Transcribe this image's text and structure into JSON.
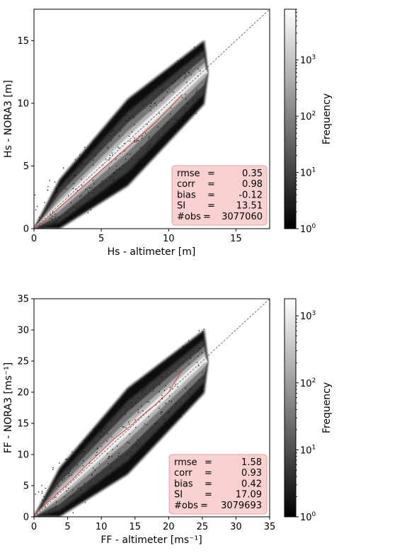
{
  "chart_data": [
    {
      "type": "heatmap",
      "subtype": "2d-density-scatter",
      "xlabel": "Hs - altimeter [m]",
      "ylabel": "Hs - NORA3 [m]",
      "xlim": [
        0,
        17.5
      ],
      "ylim": [
        0,
        17.5
      ],
      "xticks": [
        0,
        5,
        10,
        15
      ],
      "yticks": [
        0,
        5,
        10,
        15
      ],
      "colorbar": {
        "label": "Frequency",
        "scale": "log",
        "ticks": [
          {
            "exp": "0"
          },
          {
            "exp": "1"
          },
          {
            "exp": "2"
          },
          {
            "exp": "3"
          }
        ],
        "range": [
          1,
          8000
        ]
      },
      "identity_line": {
        "style": "dashed",
        "color": "#555555"
      },
      "mean_curve": {
        "color": "#d24040",
        "x": [
          0,
          1,
          2,
          3,
          4,
          5,
          6,
          7,
          8,
          9,
          10,
          11
        ],
        "y": [
          0,
          0.85,
          1.8,
          2.75,
          3.7,
          4.65,
          5.6,
          6.55,
          7.5,
          8.45,
          9.55,
          10.7
        ]
      },
      "stats": [
        {
          "label": "rmse",
          "eq": "=",
          "value": "0.35"
        },
        {
          "label": "corr",
          "eq": "=",
          "value": "0.98"
        },
        {
          "label": "bias",
          "eq": "=",
          "value": "-0.12"
        },
        {
          "label": "SI",
          "eq": "=",
          "value": "13.51"
        },
        {
          "label": "#obs",
          "eq": "=",
          "value": "3077060"
        }
      ]
    },
    {
      "type": "heatmap",
      "subtype": "2d-density-scatter",
      "xlabel": "FF - altimeter [ms⁻¹]",
      "ylabel": "FF - NORA3 [ms⁻¹]",
      "xlim": [
        0,
        35
      ],
      "ylim": [
        0,
        35
      ],
      "xticks": [
        0,
        5,
        10,
        15,
        20,
        25,
        30,
        35
      ],
      "yticks": [
        0,
        5,
        10,
        15,
        20,
        25,
        30,
        35
      ],
      "colorbar": {
        "label": "Frequency",
        "scale": "log",
        "ticks": [
          {
            "exp": "0"
          },
          {
            "exp": "1"
          },
          {
            "exp": "2"
          },
          {
            "exp": "3"
          }
        ],
        "range": [
          1,
          1800
        ]
      },
      "identity_line": {
        "style": "dashed",
        "color": "#555555"
      },
      "mean_curve": {
        "color": "#d24040",
        "x": [
          0,
          2,
          4,
          6,
          8,
          10,
          12,
          14,
          16,
          18,
          20,
          21,
          22
        ],
        "y": [
          0.3,
          2.3,
          4.3,
          6.3,
          8.5,
          10.5,
          12.6,
          14.3,
          16.2,
          18.0,
          20.0,
          21.8,
          23.5
        ]
      },
      "stats": [
        {
          "label": "rmse",
          "eq": "=",
          "value": "1.58"
        },
        {
          "label": "corr",
          "eq": "=",
          "value": "0.93"
        },
        {
          "label": "bias",
          "eq": "=",
          "value": "0.42"
        },
        {
          "label": "SI",
          "eq": "=",
          "value": "17.09"
        },
        {
          "label": "#obs",
          "eq": "=",
          "value": "3079693"
        }
      ]
    }
  ]
}
